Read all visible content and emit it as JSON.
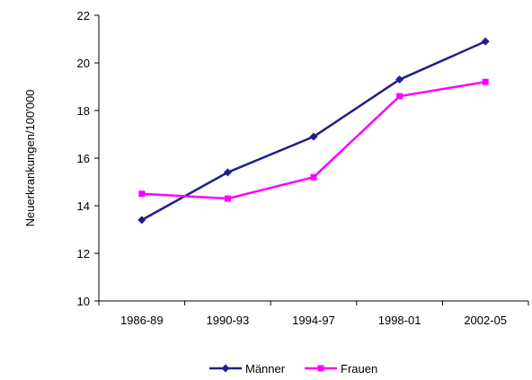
{
  "chart_data": {
    "type": "line",
    "title": "",
    "xlabel": "",
    "ylabel": "Neuerkrankungen/100'000",
    "categories": [
      "1986-89",
      "1990-93",
      "1994-97",
      "1998-01",
      "2002-05"
    ],
    "ylim": [
      10,
      22
    ],
    "yticks": [
      10,
      12,
      14,
      16,
      18,
      20,
      22
    ],
    "grid": false,
    "legend_position": "bottom",
    "series": [
      {
        "name": "Männer",
        "values": [
          13.4,
          15.4,
          16.9,
          19.3,
          20.9
        ],
        "color": "#1f1f8f",
        "marker": "diamond"
      },
      {
        "name": "Frauen",
        "values": [
          14.5,
          14.3,
          15.2,
          18.6,
          19.2
        ],
        "color": "#ff00ff",
        "marker": "square"
      }
    ]
  }
}
